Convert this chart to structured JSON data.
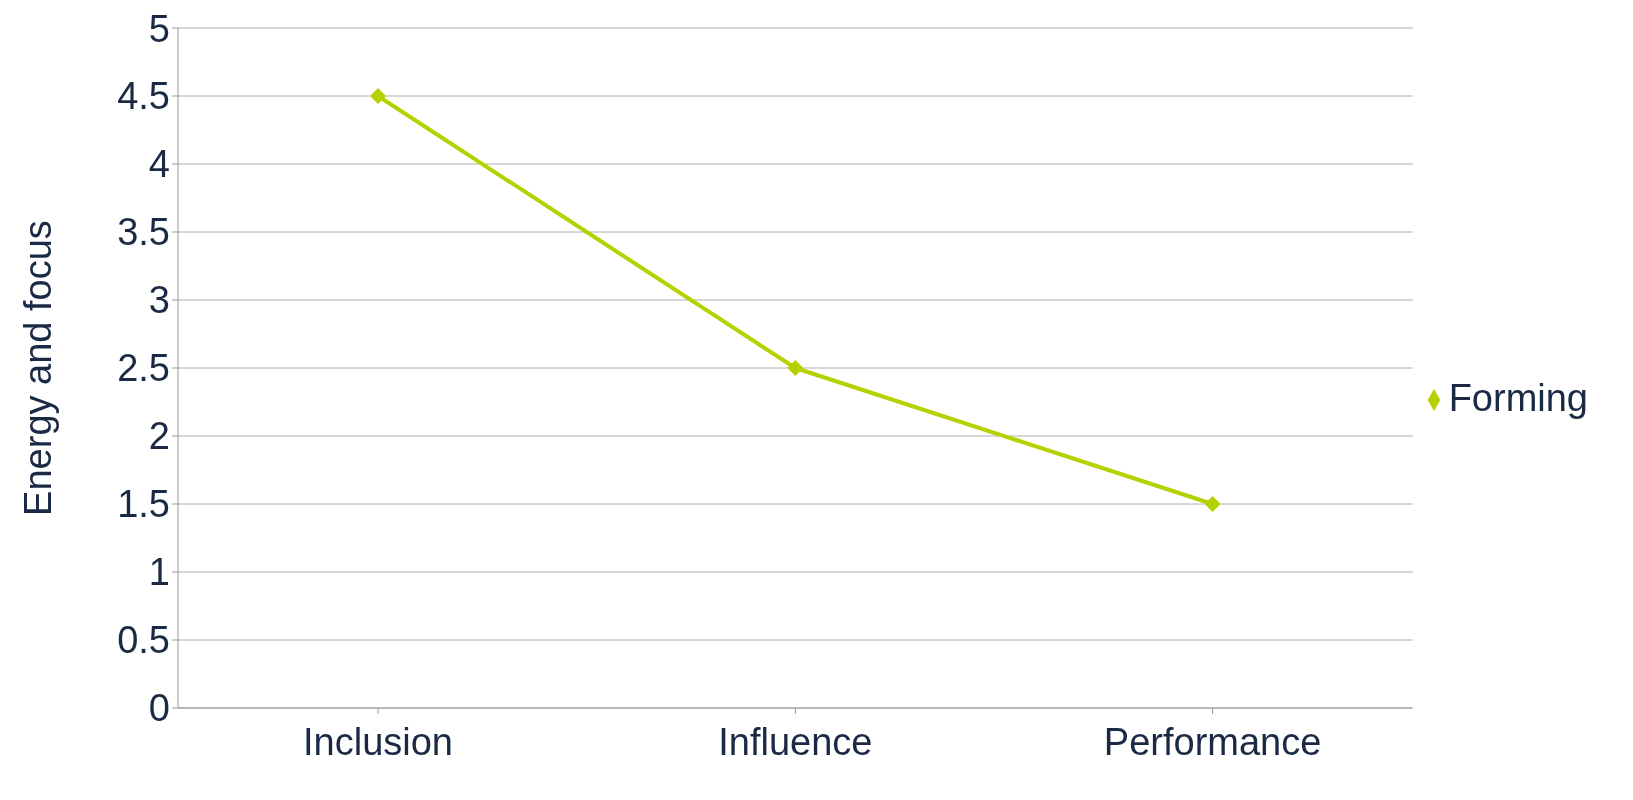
{
  "chart_data": {
    "type": "line",
    "ylabel": "Energy and focus",
    "categories": [
      "Inclusion",
      "Influence",
      "Performance"
    ],
    "series": [
      {
        "name": "Forming",
        "color": "#b5d100",
        "values": [
          4.5,
          2.5,
          1.5
        ]
      }
    ],
    "ylim": [
      0,
      5
    ],
    "yticks": [
      0,
      0.5,
      1,
      1.5,
      2,
      2.5,
      3,
      3.5,
      4,
      4.5,
      5
    ],
    "grid": "y",
    "legend": "right",
    "marker": "diamond",
    "line_style": "solid"
  }
}
